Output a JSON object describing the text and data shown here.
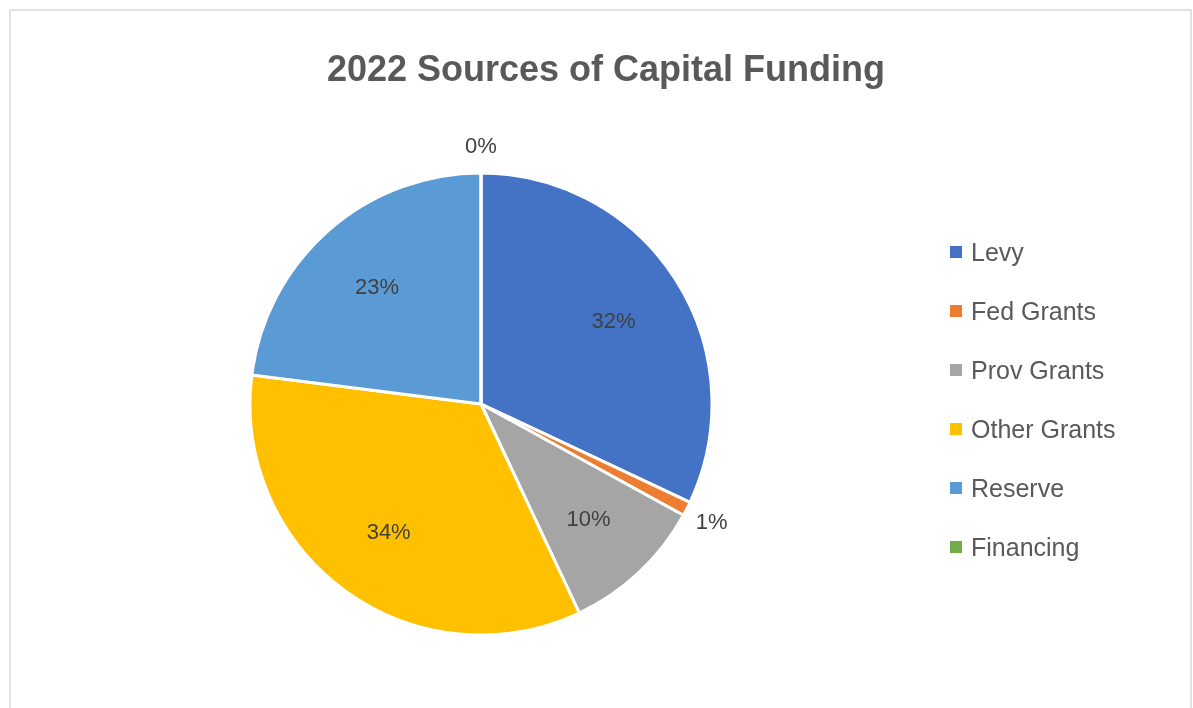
{
  "chart_data": {
    "type": "pie",
    "title": "2022 Sources of Capital Funding",
    "categories": [
      "Levy",
      "Fed Grants",
      "Prov Grants",
      "Other Grants",
      "Reserve",
      "Financing"
    ],
    "values": [
      32,
      1,
      10,
      34,
      23,
      0
    ],
    "colors": [
      "#4472c4",
      "#ed7d31",
      "#a5a5a5",
      "#ffc000",
      "#5b9bd5",
      "#70ad47"
    ],
    "value_labels": [
      "32%",
      "1%",
      "10%",
      "34%",
      "23%",
      "0%"
    ],
    "legend": "right"
  }
}
